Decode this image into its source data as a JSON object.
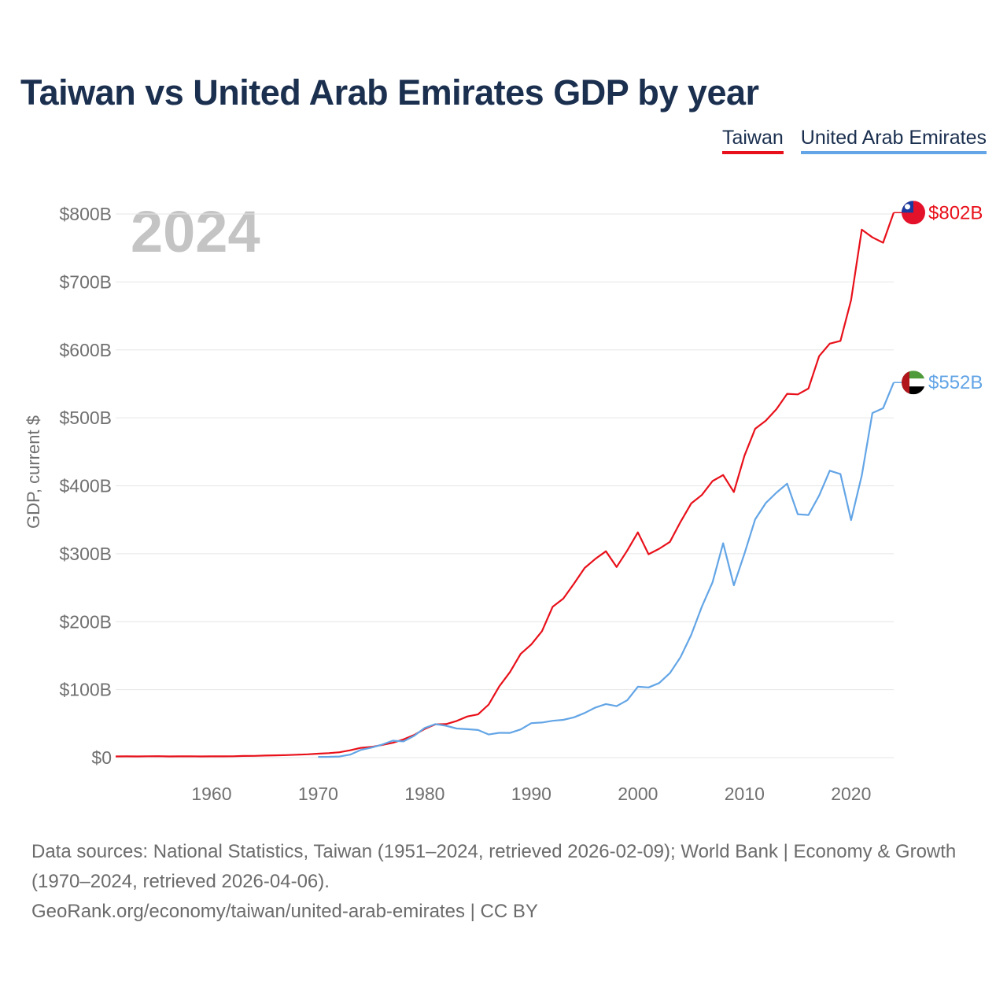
{
  "title": "Taiwan vs United Arab Emirates GDP by year",
  "year_label": "2024",
  "legend": {
    "taiwan": "Taiwan",
    "uae": "United Arab Emirates"
  },
  "colors": {
    "taiwan": "#e8101a",
    "uae": "#63a5e6",
    "title": "#1b2f4f",
    "grid": "#e6e6e6",
    "axis_text": "#707070",
    "year_watermark": "#c4c4c4"
  },
  "source": {
    "line1": "Data sources: National Statistics, Taiwan (1951–2024, retrieved 2026-02-09); World Bank | Economy & Growth (1970–2024, retrieved 2026-04-06).",
    "line2": "GeoRank.org/economy/taiwan/united-arab-emirates | CC BY"
  },
  "chart_data": {
    "type": "line",
    "title": "Taiwan vs United Arab Emirates GDP by year",
    "xlabel": "",
    "ylabel": "GDP, current $",
    "xlim": [
      1951,
      2024
    ],
    "ylim": [
      0,
      800
    ],
    "y_unit": "billions of current US dollars",
    "x_ticks": [
      1960,
      1970,
      1980,
      1990,
      2000,
      2010,
      2020
    ],
    "y_ticks": [
      0,
      100,
      200,
      300,
      400,
      500,
      600,
      700,
      800
    ],
    "y_tick_labels": [
      "$0",
      "$100B",
      "$200B",
      "$300B",
      "$400B",
      "$500B",
      "$600B",
      "$700B",
      "$800B"
    ],
    "series": [
      {
        "name": "Taiwan",
        "end_label": "$802B",
        "flag": "taiwan-flag",
        "x": [
          1951,
          1952,
          1953,
          1954,
          1955,
          1956,
          1957,
          1958,
          1959,
          1960,
          1961,
          1962,
          1963,
          1964,
          1965,
          1966,
          1967,
          1968,
          1969,
          1970,
          1971,
          1972,
          1973,
          1974,
          1975,
          1976,
          1977,
          1978,
          1979,
          1980,
          1981,
          1982,
          1983,
          1984,
          1985,
          1986,
          1987,
          1988,
          1989,
          1990,
          1991,
          1992,
          1993,
          1994,
          1995,
          1996,
          1997,
          1998,
          1999,
          2000,
          2001,
          2002,
          2003,
          2004,
          2005,
          2006,
          2007,
          2008,
          2009,
          2010,
          2011,
          2012,
          2013,
          2014,
          2015,
          2016,
          2017,
          2018,
          2019,
          2020,
          2021,
          2022,
          2023,
          2024
        ],
        "values": [
          1.7,
          1.9,
          1.7,
          2.0,
          2.1,
          1.7,
          1.9,
          2.0,
          1.7,
          1.8,
          1.9,
          2.0,
          2.4,
          2.6,
          3.0,
          3.3,
          3.7,
          4.3,
          4.9,
          5.8,
          6.6,
          7.9,
          10.8,
          14.4,
          15.7,
          18.6,
          21.8,
          26.8,
          33.2,
          42.3,
          49.0,
          49.3,
          53.9,
          60.6,
          63.6,
          78.2,
          105.0,
          126.0,
          152.6,
          166.6,
          186.0,
          222.0,
          234.0,
          256.0,
          279.0,
          292.5,
          303.7,
          280.5,
          304.7,
          331.5,
          299.3,
          307.4,
          317.4,
          346.9,
          374.1,
          386.5,
          406.9,
          415.9,
          390.8,
          444.3,
          483.9,
          495.8,
          512.9,
          535.3,
          534.5,
          543.1,
          590.8,
          609.2,
          613.3,
          673.2,
          777.0,
          765.6,
          757.7,
          802.0
        ]
      },
      {
        "name": "United Arab Emirates",
        "end_label": "$552B",
        "flag": "uae-flag",
        "x": [
          1970,
          1971,
          1972,
          1973,
          1974,
          1975,
          1976,
          1977,
          1978,
          1979,
          1980,
          1981,
          1982,
          1983,
          1984,
          1985,
          1986,
          1987,
          1988,
          1989,
          1990,
          1991,
          1992,
          1993,
          1994,
          1995,
          1996,
          1997,
          1998,
          1999,
          2000,
          2001,
          2002,
          2003,
          2004,
          2005,
          2006,
          2007,
          2008,
          2009,
          2010,
          2011,
          2012,
          2013,
          2014,
          2015,
          2016,
          2017,
          2018,
          2019,
          2020,
          2021,
          2022,
          2023,
          2024
        ],
        "values": [
          1.0,
          1.2,
          1.6,
          4.4,
          11.4,
          14.7,
          19.2,
          24.9,
          23.8,
          32.0,
          43.6,
          49.3,
          46.9,
          42.8,
          41.8,
          40.6,
          34.0,
          36.5,
          36.3,
          41.5,
          50.7,
          51.6,
          54.2,
          55.6,
          59.3,
          65.7,
          73.6,
          78.8,
          75.7,
          84.4,
          104.3,
          103.3,
          109.8,
          124.3,
          147.8,
          180.6,
          222.1,
          257.9,
          315.5,
          253.5,
          300.2,
          350.7,
          374.6,
          390.1,
          403.1,
          358.1,
          357.0,
          385.6,
          422.2,
          417.2,
          349.5,
          415.2,
          507.1,
          514.1,
          552.0
        ]
      }
    ]
  }
}
